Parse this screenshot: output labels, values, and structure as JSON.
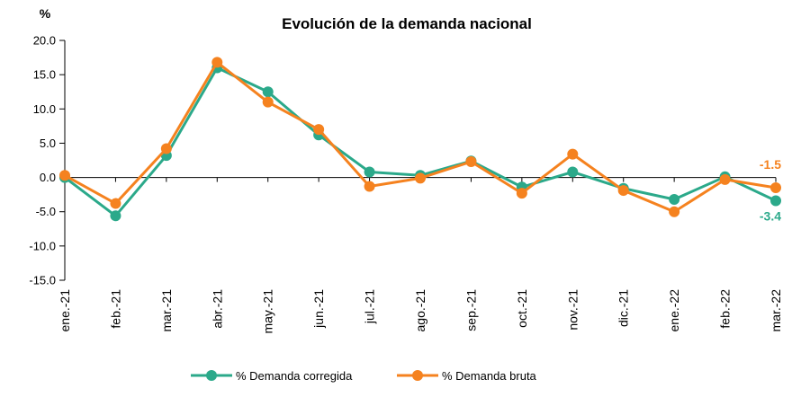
{
  "chart_data": {
    "type": "line",
    "title": "Evolución de la demanda nacional",
    "ylabel": "%",
    "xlabel": "",
    "ylim": [
      -15,
      20
    ],
    "ytick_step": 5,
    "ytick_labels": [
      "20.0",
      "15.0",
      "10.0",
      "5.0",
      "0.0",
      "-5.0",
      "-10.0",
      "-15.0"
    ],
    "categories": [
      "ene.-21",
      "feb.-21",
      "mar.-21",
      "abr.-21",
      "may.-21",
      "jun.-21",
      "jul.-21",
      "ago.-21",
      "sep.-21",
      "oct.-21",
      "nov.-21",
      "dic.-21",
      "ene.-22",
      "feb.-22",
      "mar.-22"
    ],
    "series": [
      {
        "name": "% Demanda corregida",
        "color": "#2BA98A",
        "values": [
          0.0,
          -5.6,
          3.2,
          16.0,
          12.5,
          6.2,
          0.8,
          0.3,
          2.4,
          -1.4,
          0.8,
          -1.6,
          -3.2,
          0.1,
          -3.4
        ],
        "end_label": "-3.4"
      },
      {
        "name": "% Demanda bruta",
        "color": "#F5821F",
        "values": [
          0.3,
          -3.8,
          4.2,
          16.8,
          11.0,
          7.0,
          -1.3,
          -0.1,
          2.3,
          -2.3,
          3.4,
          -1.9,
          -5.0,
          -0.3,
          -1.5
        ],
        "end_label": "-1.5"
      }
    ],
    "legend": "bottom-center"
  }
}
